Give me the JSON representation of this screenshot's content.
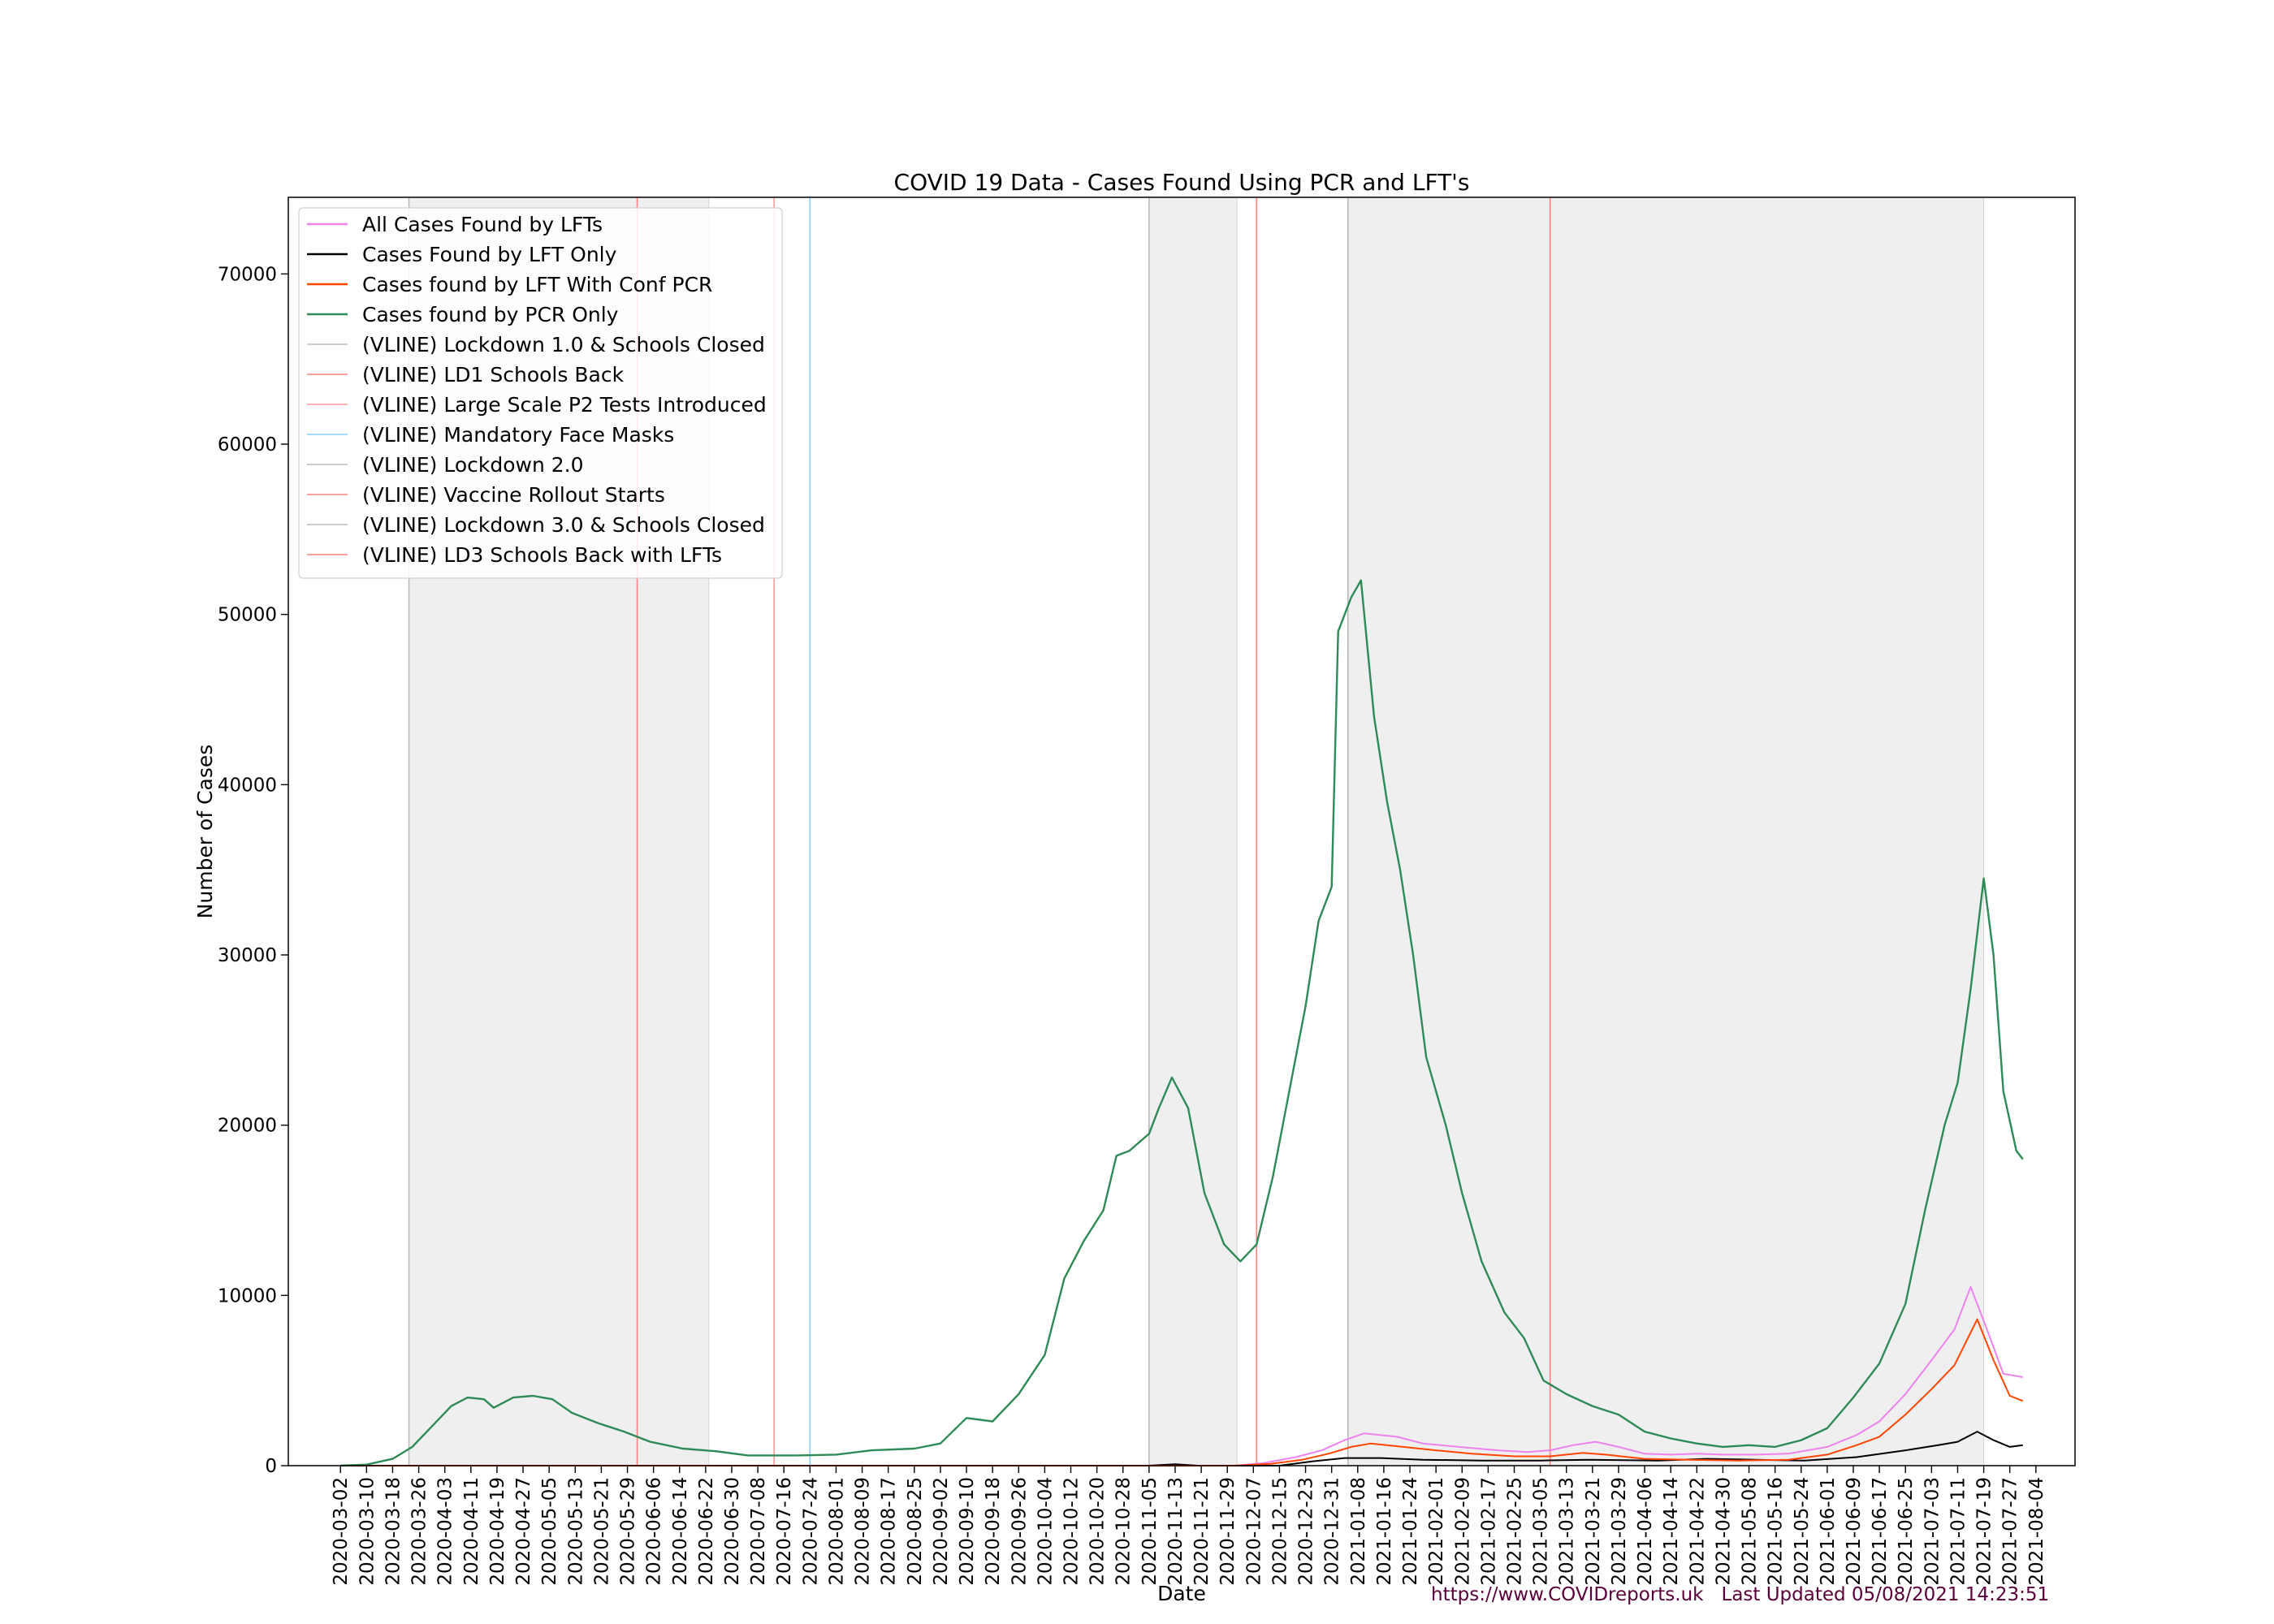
{
  "chart_data": {
    "type": "line",
    "title": "COVID 19 Data - Cases Found Using PCR and LFT's",
    "xlabel": "Date",
    "ylabel": "Number of Cases",
    "ylim": [
      0,
      74500
    ],
    "xlim": [
      "2020-02-15",
      "2021-08-16"
    ],
    "yticks": [
      0,
      10000,
      20000,
      30000,
      40000,
      50000,
      60000,
      70000
    ],
    "xticks": [
      "2020-03-02",
      "2020-03-10",
      "2020-03-18",
      "2020-03-26",
      "2020-04-03",
      "2020-04-11",
      "2020-04-19",
      "2020-04-27",
      "2020-05-05",
      "2020-05-13",
      "2020-05-21",
      "2020-05-29",
      "2020-06-06",
      "2020-06-14",
      "2020-06-22",
      "2020-06-30",
      "2020-07-08",
      "2020-07-16",
      "2020-07-24",
      "2020-08-01",
      "2020-08-09",
      "2020-08-17",
      "2020-08-25",
      "2020-09-02",
      "2020-09-10",
      "2020-09-18",
      "2020-09-26",
      "2020-10-04",
      "2020-10-12",
      "2020-10-20",
      "2020-10-28",
      "2020-11-05",
      "2020-11-13",
      "2020-11-21",
      "2020-11-29",
      "2020-12-07",
      "2020-12-15",
      "2020-12-23",
      "2020-12-31",
      "2021-01-08",
      "2021-01-16",
      "2021-01-24",
      "2021-02-01",
      "2021-02-09",
      "2021-02-17",
      "2021-02-25",
      "2021-03-05",
      "2021-03-13",
      "2021-03-21",
      "2021-03-29",
      "2021-04-06",
      "2021-04-14",
      "2021-04-22",
      "2021-04-30",
      "2021-05-08",
      "2021-05-16",
      "2021-05-24",
      "2021-06-01",
      "2021-06-09",
      "2021-06-17",
      "2021-06-25",
      "2021-07-03",
      "2021-07-11",
      "2021-07-19",
      "2021-07-27",
      "2021-08-04"
    ],
    "grid": false,
    "legend_position": "upper-left",
    "series": [
      {
        "name": "All Cases Found by LFTs",
        "color": "#ee82ee",
        "points": [
          [
            "2020-03-02",
            0
          ],
          [
            "2020-12-01",
            0
          ],
          [
            "2020-12-10",
            150
          ],
          [
            "2020-12-20",
            500
          ],
          [
            "2020-12-28",
            900
          ],
          [
            "2021-01-04",
            1500
          ],
          [
            "2021-01-10",
            1900
          ],
          [
            "2021-01-20",
            1700
          ],
          [
            "2021-01-28",
            1300
          ],
          [
            "2021-02-08",
            1100
          ],
          [
            "2021-02-20",
            900
          ],
          [
            "2021-03-01",
            800
          ],
          [
            "2021-03-08",
            900
          ],
          [
            "2021-03-15",
            1200
          ],
          [
            "2021-03-22",
            1400
          ],
          [
            "2021-03-29",
            1100
          ],
          [
            "2021-04-06",
            700
          ],
          [
            "2021-04-14",
            650
          ],
          [
            "2021-04-22",
            700
          ],
          [
            "2021-04-30",
            650
          ],
          [
            "2021-05-10",
            650
          ],
          [
            "2021-05-20",
            700
          ],
          [
            "2021-06-01",
            1100
          ],
          [
            "2021-06-10",
            1800
          ],
          [
            "2021-06-17",
            2600
          ],
          [
            "2021-06-25",
            4200
          ],
          [
            "2021-07-03",
            6200
          ],
          [
            "2021-07-10",
            8000
          ],
          [
            "2021-07-15",
            10500
          ],
          [
            "2021-07-20",
            8000
          ],
          [
            "2021-07-25",
            5400
          ],
          [
            "2021-07-31",
            5200
          ]
        ]
      },
      {
        "name": "Cases Found by LFT Only",
        "color": "#000000",
        "points": [
          [
            "2020-03-02",
            0
          ],
          [
            "2020-11-05",
            0
          ],
          [
            "2020-11-13",
            80
          ],
          [
            "2020-11-20",
            0
          ],
          [
            "2020-12-15",
            0
          ],
          [
            "2020-12-25",
            250
          ],
          [
            "2021-01-04",
            450
          ],
          [
            "2021-01-15",
            450
          ],
          [
            "2021-01-28",
            350
          ],
          [
            "2021-02-15",
            300
          ],
          [
            "2021-03-05",
            300
          ],
          [
            "2021-03-20",
            350
          ],
          [
            "2021-04-10",
            300
          ],
          [
            "2021-04-25",
            400
          ],
          [
            "2021-05-10",
            350
          ],
          [
            "2021-05-25",
            300
          ],
          [
            "2021-06-10",
            500
          ],
          [
            "2021-06-25",
            900
          ],
          [
            "2021-07-05",
            1200
          ],
          [
            "2021-07-11",
            1400
          ],
          [
            "2021-07-17",
            2000
          ],
          [
            "2021-07-22",
            1500
          ],
          [
            "2021-07-27",
            1100
          ],
          [
            "2021-07-31",
            1200
          ]
        ]
      },
      {
        "name": "Cases found by LFT With Conf PCR",
        "color": "#ff4500",
        "points": [
          [
            "2020-03-02",
            0
          ],
          [
            "2020-12-01",
            0
          ],
          [
            "2020-12-12",
            100
          ],
          [
            "2020-12-22",
            350
          ],
          [
            "2020-12-30",
            700
          ],
          [
            "2021-01-06",
            1100
          ],
          [
            "2021-01-12",
            1300
          ],
          [
            "2021-01-22",
            1100
          ],
          [
            "2021-02-01",
            900
          ],
          [
            "2021-02-12",
            700
          ],
          [
            "2021-02-25",
            550
          ],
          [
            "2021-03-08",
            550
          ],
          [
            "2021-03-18",
            750
          ],
          [
            "2021-03-25",
            650
          ],
          [
            "2021-04-06",
            400
          ],
          [
            "2021-04-20",
            350
          ],
          [
            "2021-05-05",
            300
          ],
          [
            "2021-05-20",
            350
          ],
          [
            "2021-06-01",
            650
          ],
          [
            "2021-06-10",
            1200
          ],
          [
            "2021-06-17",
            1700
          ],
          [
            "2021-06-25",
            3000
          ],
          [
            "2021-07-03",
            4500
          ],
          [
            "2021-07-10",
            5900
          ],
          [
            "2021-07-17",
            8600
          ],
          [
            "2021-07-22",
            6200
          ],
          [
            "2021-07-27",
            4100
          ],
          [
            "2021-07-31",
            3800
          ]
        ]
      },
      {
        "name": "Cases found by PCR Only",
        "color": "#2e8b57",
        "points": [
          [
            "2020-03-02",
            0
          ],
          [
            "2020-03-10",
            60
          ],
          [
            "2020-03-18",
            400
          ],
          [
            "2020-03-24",
            1100
          ],
          [
            "2020-03-30",
            2300
          ],
          [
            "2020-04-05",
            3500
          ],
          [
            "2020-04-10",
            4000
          ],
          [
            "2020-04-15",
            3900
          ],
          [
            "2020-04-18",
            3400
          ],
          [
            "2020-04-24",
            4000
          ],
          [
            "2020-04-30",
            4100
          ],
          [
            "2020-05-06",
            3900
          ],
          [
            "2020-05-12",
            3100
          ],
          [
            "2020-05-20",
            2500
          ],
          [
            "2020-05-28",
            2000
          ],
          [
            "2020-06-05",
            1400
          ],
          [
            "2020-06-15",
            1000
          ],
          [
            "2020-06-25",
            850
          ],
          [
            "2020-07-05",
            600
          ],
          [
            "2020-07-20",
            600
          ],
          [
            "2020-08-01",
            650
          ],
          [
            "2020-08-12",
            900
          ],
          [
            "2020-08-25",
            1000
          ],
          [
            "2020-09-02",
            1300
          ],
          [
            "2020-09-10",
            2800
          ],
          [
            "2020-09-18",
            2600
          ],
          [
            "2020-09-26",
            4200
          ],
          [
            "2020-10-04",
            6500
          ],
          [
            "2020-10-10",
            11000
          ],
          [
            "2020-10-16",
            13200
          ],
          [
            "2020-10-22",
            15000
          ],
          [
            "2020-10-26",
            18200
          ],
          [
            "2020-10-30",
            18500
          ],
          [
            "2020-11-05",
            19500
          ],
          [
            "2020-11-08",
            21000
          ],
          [
            "2020-11-12",
            22800
          ],
          [
            "2020-11-17",
            21000
          ],
          [
            "2020-11-22",
            16000
          ],
          [
            "2020-11-28",
            13000
          ],
          [
            "2020-12-03",
            12000
          ],
          [
            "2020-12-08",
            13000
          ],
          [
            "2020-12-13",
            17000
          ],
          [
            "2020-12-18",
            22000
          ],
          [
            "2020-12-23",
            27000
          ],
          [
            "2020-12-27",
            32000
          ],
          [
            "2020-12-31",
            34000
          ],
          [
            "2021-01-02",
            49000
          ],
          [
            "2021-01-06",
            51000
          ],
          [
            "2021-01-09",
            52000
          ],
          [
            "2021-01-13",
            44000
          ],
          [
            "2021-01-17",
            39000
          ],
          [
            "2021-01-21",
            35000
          ],
          [
            "2021-01-25",
            30000
          ],
          [
            "2021-01-29",
            24000
          ],
          [
            "2021-02-04",
            20000
          ],
          [
            "2021-02-09",
            16000
          ],
          [
            "2021-02-15",
            12000
          ],
          [
            "2021-02-22",
            9000
          ],
          [
            "2021-02-28",
            7500
          ],
          [
            "2021-03-06",
            5000
          ],
          [
            "2021-03-13",
            4200
          ],
          [
            "2021-03-21",
            3500
          ],
          [
            "2021-03-29",
            3000
          ],
          [
            "2021-04-06",
            2000
          ],
          [
            "2021-04-14",
            1600
          ],
          [
            "2021-04-22",
            1300
          ],
          [
            "2021-04-30",
            1100
          ],
          [
            "2021-05-08",
            1200
          ],
          [
            "2021-05-16",
            1100
          ],
          [
            "2021-05-24",
            1500
          ],
          [
            "2021-06-01",
            2200
          ],
          [
            "2021-06-09",
            4000
          ],
          [
            "2021-06-17",
            6000
          ],
          [
            "2021-06-25",
            9500
          ],
          [
            "2021-07-01",
            15000
          ],
          [
            "2021-07-07",
            20000
          ],
          [
            "2021-07-11",
            22500
          ],
          [
            "2021-07-15",
            28000
          ],
          [
            "2021-07-19",
            34500
          ],
          [
            "2021-07-22",
            30000
          ],
          [
            "2021-07-25",
            22000
          ],
          [
            "2021-07-29",
            18500
          ],
          [
            "2021-07-31",
            18000
          ]
        ]
      }
    ],
    "vlines": [
      {
        "name": "(VLINE) Lockdown 1.0 & Schools Closed",
        "date": "2020-03-23",
        "color": "#bbbbbb",
        "style": "solid"
      },
      {
        "name": "(VLINE) LD1 Schools Back",
        "date": "2020-06-01",
        "color": "#ff8080",
        "style": "solid"
      },
      {
        "name": "(VLINE) Large Scale P2 Tests Introduced",
        "date": "2020-07-13",
        "color": "#ff9999",
        "style": "solid"
      },
      {
        "name": "(VLINE) Mandatory Face Masks",
        "date": "2020-07-24",
        "color": "#87cefa",
        "style": "solid"
      },
      {
        "name": "(VLINE) Lockdown 2.0",
        "date": "2020-11-05",
        "color": "#bbbbbb",
        "style": "solid"
      },
      {
        "name": "(VLINE) Vaccine Rollout Starts",
        "date": "2020-12-08",
        "color": "#ff8080",
        "style": "solid"
      },
      {
        "name": "(VLINE) Lockdown 3.0 & Schools Closed",
        "date": "2021-01-05",
        "color": "#bbbbbb",
        "style": "solid"
      },
      {
        "name": "(VLINE) LD3 Schools Back with LFTs",
        "date": "2021-03-08",
        "color": "#ff8080",
        "style": "solid"
      }
    ],
    "shaded_regions": [
      {
        "start": "2020-03-23",
        "end": "2020-06-23"
      },
      {
        "start": "2020-11-05",
        "end": "2020-12-02"
      },
      {
        "start": "2021-01-05",
        "end": "2021-07-19"
      }
    ]
  },
  "footer": {
    "url": "https://www.COVIDreports.uk",
    "updated": "Last Updated 05/08/2021 14:23:51"
  }
}
